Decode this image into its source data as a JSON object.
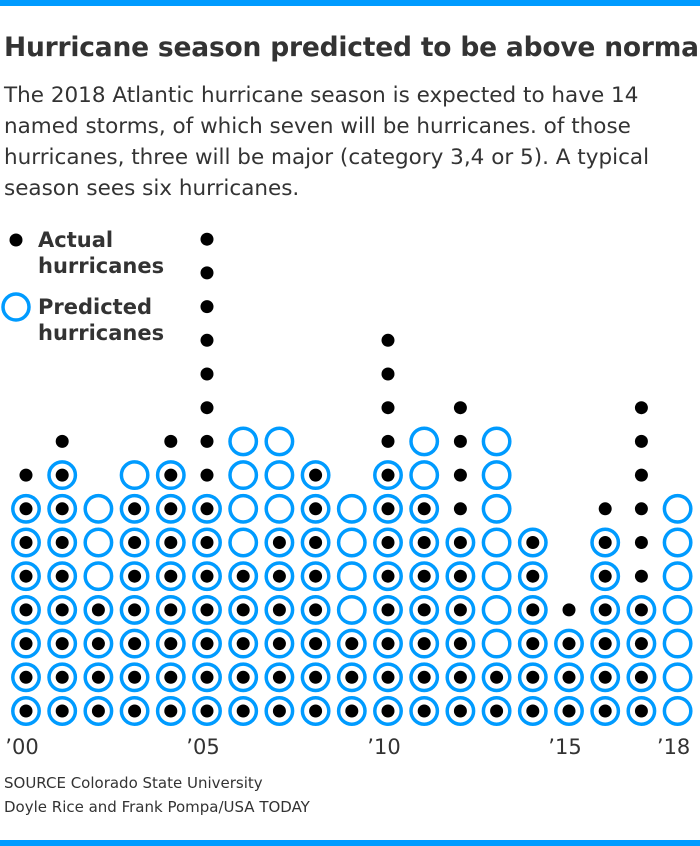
{
  "header": {
    "title": "Hurricane season predicted to be above normal",
    "subtitle": "The 2018 Atlantic hurricane season is expected to have 14 named storms, of which seven will be hurricanes. of those hurricanes, three will be major (category 3,4 or 5). A typical season sees six hurricanes."
  },
  "legend": {
    "actual": [
      "Actual",
      "hurricanes"
    ],
    "predicted": [
      "Predicted",
      "hurricanes"
    ]
  },
  "footer": {
    "source": "SOURCE Colorado State University",
    "credit": "Doyle Rice and Frank Pompa/USA TODAY"
  },
  "colors": {
    "accent": "#009bff",
    "actual_dot": "#000000",
    "text": "#333333"
  },
  "chart_data": {
    "type": "dot",
    "x": [
      2000,
      2001,
      2002,
      2003,
      2004,
      2005,
      2006,
      2007,
      2008,
      2009,
      2010,
      2011,
      2012,
      2013,
      2014,
      2015,
      2016,
      2017,
      2018
    ],
    "tick_labels": [
      "’00",
      "’05",
      "’10",
      "’15",
      "’18"
    ],
    "tick_years": [
      2000,
      2005,
      2010,
      2015,
      2018
    ],
    "series": [
      {
        "name": "Actual hurricanes",
        "values": [
          8,
          9,
          4,
          7,
          9,
          15,
          5,
          6,
          8,
          3,
          12,
          7,
          10,
          2,
          6,
          4,
          7,
          10,
          null
        ]
      },
      {
        "name": "Predicted hurricanes",
        "values": [
          7,
          8,
          7,
          8,
          8,
          7,
          9,
          9,
          8,
          7,
          8,
          9,
          6,
          9,
          6,
          3,
          6,
          4,
          7
        ]
      }
    ],
    "ylim": [
      0,
      15
    ]
  }
}
